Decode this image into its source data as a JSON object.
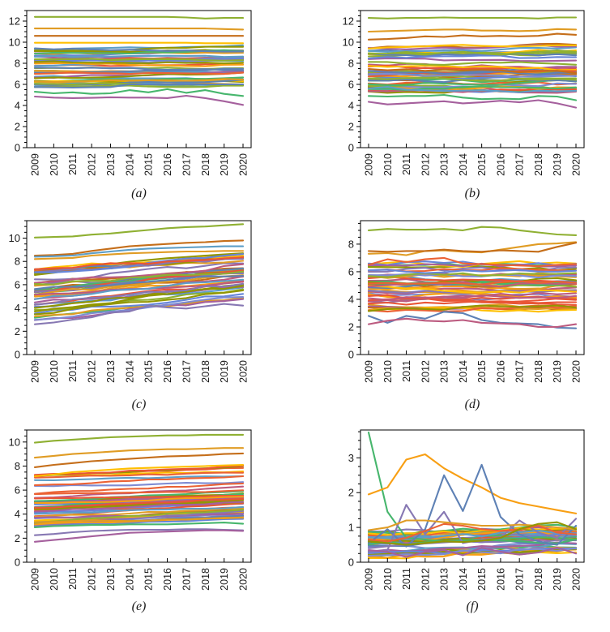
{
  "figure": {
    "background": "#ffffff",
    "frame_color": "#000000",
    "tick_label_color": "#1a1a1a",
    "tick_font_px": 13,
    "x_tick_font_px": 12.5
  },
  "years": [
    "2009",
    "2010",
    "2011",
    "2012",
    "2013",
    "2014",
    "2015",
    "2016",
    "2017",
    "2018",
    "2019",
    "2020"
  ],
  "palette": [
    "#5e81b5",
    "#e09c24",
    "#8fb032",
    "#eb6235",
    "#8778b3",
    "#c56e1a",
    "#5d9ec7",
    "#ffbf00",
    "#a5609d",
    "#929600",
    "#e95536",
    "#6685d9",
    "#f89f13",
    "#bc5b80",
    "#47b66d",
    "#7e8bd2"
  ],
  "chart_data": [
    {
      "id": "a",
      "caption": "(a)",
      "type": "line",
      "ytop": 13,
      "ytick_values": [
        0,
        2,
        4,
        6,
        8,
        10,
        12
      ],
      "ytick_labels": [
        "0",
        "2",
        "4",
        "6",
        "8",
        "10",
        "12"
      ],
      "minor_step": 0.5,
      "series": [
        {
          "color": "#8fb032",
          "values": [
            12.4,
            12.4,
            12.4,
            12.4,
            12.4,
            12.4,
            12.4,
            12.4,
            12.35,
            12.25,
            12.3,
            12.3
          ]
        },
        {
          "color": "#e09c24",
          "values": [
            11.3,
            11.3,
            11.3,
            11.3,
            11.3,
            11.3,
            11.3,
            11.3,
            11.3,
            11.3,
            11.25,
            11.2
          ]
        },
        {
          "color": "#c56e1a",
          "values": [
            10.6,
            10.6,
            10.6,
            10.6,
            10.6,
            10.6,
            10.6,
            10.6,
            10.6,
            10.6,
            10.6,
            10.6
          ]
        },
        {
          "color": "#ffbf00",
          "values": [
            9.95,
            9.95,
            9.95,
            9.95,
            9.95,
            9.95,
            9.95,
            9.95,
            9.95,
            9.9,
            9.9,
            9.9
          ]
        },
        {
          "color": "#5e81b5",
          "values": [
            5.75,
            5.72,
            5.7,
            5.72,
            5.75,
            6.0,
            6.0,
            6.0,
            6.0,
            6.0,
            6.0,
            6.0
          ]
        },
        {
          "color": "#47b66d",
          "values": [
            5.3,
            5.15,
            5.25,
            5.1,
            5.15,
            5.45,
            5.25,
            5.55,
            5.2,
            5.45,
            5.1,
            4.9
          ]
        },
        {
          "color": "#a5609d",
          "values": [
            4.85,
            4.75,
            4.7,
            4.72,
            4.78,
            4.75,
            4.75,
            4.7,
            4.92,
            4.7,
            4.4,
            4.05
          ]
        }
      ],
      "band": {
        "count": 42,
        "start": [
          5.7,
          9.7
        ],
        "end": [
          5.9,
          9.7
        ],
        "wobble": 0.18,
        "seed": 11
      }
    },
    {
      "id": "b",
      "caption": "(b)",
      "type": "line",
      "ytop": 13,
      "ytick_values": [
        0,
        2,
        4,
        6,
        8,
        10,
        12
      ],
      "ytick_labels": [
        "0",
        "2",
        "4",
        "6",
        "8",
        "10",
        "12"
      ],
      "minor_step": 0.5,
      "series": [
        {
          "color": "#8fb032",
          "values": [
            12.3,
            12.25,
            12.3,
            12.3,
            12.35,
            12.3,
            12.3,
            12.3,
            12.3,
            12.25,
            12.35,
            12.35
          ]
        },
        {
          "color": "#e09c24",
          "values": [
            11.0,
            11.05,
            11.1,
            11.15,
            11.2,
            11.2,
            11.1,
            11.1,
            11.05,
            11.1,
            11.25,
            11.2
          ]
        },
        {
          "color": "#c56e1a",
          "values": [
            10.25,
            10.3,
            10.4,
            10.55,
            10.5,
            10.65,
            10.55,
            10.6,
            10.55,
            10.6,
            10.8,
            10.7
          ]
        },
        {
          "color": "#ffbf00",
          "values": [
            9.4,
            9.5,
            9.55,
            9.6,
            9.7,
            9.75,
            9.65,
            9.6,
            9.6,
            9.65,
            9.7,
            9.7
          ]
        },
        {
          "color": "#47b66d",
          "values": [
            4.9,
            4.85,
            4.9,
            4.9,
            5.0,
            4.75,
            4.6,
            4.65,
            4.6,
            4.9,
            4.85,
            4.5
          ]
        },
        {
          "color": "#a5609d",
          "values": [
            4.35,
            4.1,
            4.2,
            4.3,
            4.4,
            4.2,
            4.3,
            4.45,
            4.3,
            4.5,
            4.2,
            3.8
          ]
        }
      ],
      "band": {
        "count": 44,
        "start": [
          5.3,
          9.6
        ],
        "end": [
          5.4,
          9.7
        ],
        "wobble": 0.3,
        "seed": 23
      }
    },
    {
      "id": "c",
      "caption": "(c)",
      "type": "line",
      "ytop": 11.5,
      "ytick_values": [
        0,
        2,
        4,
        6,
        8,
        10
      ],
      "ytick_labels": [
        "0",
        "2",
        "4",
        "6",
        "8",
        "10"
      ],
      "minor_step": 0.5,
      "series": [
        {
          "color": "#8fb032",
          "values": [
            10.05,
            10.1,
            10.15,
            10.3,
            10.4,
            10.55,
            10.7,
            10.85,
            10.95,
            11.0,
            11.1,
            11.2
          ]
        },
        {
          "color": "#c56e1a",
          "values": [
            8.5,
            8.55,
            8.65,
            8.9,
            9.1,
            9.3,
            9.4,
            9.5,
            9.6,
            9.65,
            9.75,
            9.8
          ]
        },
        {
          "color": "#5d9ec7",
          "values": [
            8.4,
            8.45,
            8.5,
            8.7,
            8.85,
            9.0,
            9.1,
            9.15,
            9.2,
            9.25,
            9.3,
            9.3
          ]
        },
        {
          "color": "#e09c24",
          "values": [
            8.2,
            8.25,
            8.3,
            8.5,
            8.6,
            8.7,
            8.75,
            8.8,
            8.85,
            8.85,
            8.9,
            8.9
          ]
        },
        {
          "color": "#8778b3",
          "values": [
            2.6,
            2.75,
            3.0,
            3.2,
            3.6,
            3.7,
            4.2,
            4.05,
            3.95,
            4.15,
            4.35,
            4.2
          ]
        }
      ],
      "band": {
        "count": 46,
        "start": [
          2.9,
          7.4
        ],
        "end": [
          4.8,
          8.7
        ],
        "wobble": 0.3,
        "seed": 37
      }
    },
    {
      "id": "d",
      "caption": "(d)",
      "type": "line",
      "ytop": 9.7,
      "ytick_values": [
        0,
        2,
        4,
        6,
        8
      ],
      "ytick_labels": [
        "0",
        "2",
        "4",
        "6",
        "8"
      ],
      "minor_step": 0.5,
      "series": [
        {
          "color": "#8fb032",
          "values": [
            9.0,
            9.1,
            9.05,
            9.05,
            9.1,
            9.0,
            9.25,
            9.2,
            9.0,
            8.85,
            8.7,
            8.65
          ]
        },
        {
          "color": "#e09c24",
          "values": [
            7.3,
            7.35,
            7.2,
            7.5,
            7.55,
            7.45,
            7.4,
            7.6,
            7.8,
            8.0,
            8.05,
            8.15
          ]
        },
        {
          "color": "#c56e1a",
          "values": [
            7.5,
            7.45,
            7.5,
            7.5,
            7.6,
            7.5,
            7.45,
            7.55,
            7.5,
            7.45,
            7.8,
            8.1
          ]
        },
        {
          "color": "#eb6235",
          "values": [
            6.5,
            6.9,
            6.7,
            6.9,
            7.0,
            6.6,
            6.55,
            6.5,
            6.45,
            6.4,
            6.5,
            6.55
          ]
        },
        {
          "color": "#929600",
          "values": [
            3.15,
            3.3,
            3.35,
            3.3,
            3.25,
            3.45,
            3.55,
            3.5,
            3.45,
            3.5,
            3.55,
            3.4
          ]
        },
        {
          "color": "#5e81b5",
          "values": [
            2.8,
            2.3,
            2.8,
            2.6,
            3.1,
            3.0,
            2.5,
            2.3,
            2.25,
            2.2,
            1.95,
            1.9
          ]
        },
        {
          "color": "#bc5b80",
          "values": [
            2.2,
            2.45,
            2.6,
            2.45,
            2.4,
            2.5,
            2.3,
            2.25,
            2.2,
            2.0,
            2.0,
            2.2
          ]
        }
      ],
      "band": {
        "count": 46,
        "start": [
          3.1,
          6.7
        ],
        "end": [
          3.2,
          6.6
        ],
        "wobble": 0.3,
        "seed": 51
      }
    },
    {
      "id": "e",
      "caption": "(e)",
      "type": "line",
      "ytop": 11.0,
      "ytick_values": [
        0,
        2,
        4,
        6,
        8,
        10
      ],
      "ytick_labels": [
        "0",
        "2",
        "4",
        "6",
        "8",
        "10"
      ],
      "minor_step": 0.5,
      "series": [
        {
          "color": "#8fb032",
          "values": [
            9.95,
            10.1,
            10.2,
            10.3,
            10.4,
            10.45,
            10.5,
            10.55,
            10.55,
            10.6,
            10.6,
            10.6
          ]
        },
        {
          "color": "#e09c24",
          "values": [
            8.7,
            8.85,
            9.0,
            9.1,
            9.2,
            9.3,
            9.35,
            9.4,
            9.4,
            9.45,
            9.5,
            9.5
          ]
        },
        {
          "color": "#c56e1a",
          "values": [
            7.9,
            8.1,
            8.25,
            8.4,
            8.5,
            8.6,
            8.7,
            8.8,
            8.85,
            8.9,
            9.0,
            9.05
          ]
        },
        {
          "color": "#ffbf00",
          "values": [
            7.15,
            7.3,
            7.5,
            7.6,
            7.7,
            7.8,
            7.85,
            7.9,
            7.95,
            8.0,
            8.05,
            8.1
          ]
        },
        {
          "color": "#47b66d",
          "values": [
            2.9,
            3.0,
            3.05,
            3.1,
            3.1,
            3.15,
            3.15,
            3.15,
            3.2,
            3.25,
            3.3,
            3.2
          ]
        },
        {
          "color": "#8778b3",
          "values": [
            2.25,
            2.35,
            2.5,
            2.6,
            2.65,
            2.7,
            2.7,
            2.7,
            2.75,
            2.75,
            2.7,
            2.65
          ]
        },
        {
          "color": "#a5609d",
          "values": [
            1.7,
            1.85,
            2.0,
            2.15,
            2.3,
            2.45,
            2.5,
            2.55,
            2.6,
            2.65,
            2.65,
            2.6
          ]
        }
      ],
      "band": {
        "count": 46,
        "start": [
          2.9,
          7.3
        ],
        "end": [
          3.6,
          8.0
        ],
        "wobble": 0.12,
        "seed": 67
      }
    },
    {
      "id": "f",
      "caption": "(f)",
      "type": "line",
      "ytop": 3.8,
      "ytick_values": [
        0,
        1,
        2,
        3
      ],
      "ytick_labels": [
        "0",
        "1",
        "2",
        "3"
      ],
      "minor_step": 0.25,
      "series": [
        {
          "color": "#47b66d",
          "values": [
            3.73,
            1.45,
            0.7,
            0.65,
            0.6,
            0.62,
            0.65,
            0.7,
            0.68,
            0.72,
            0.7,
            0.65
          ]
        },
        {
          "color": "#f89f13",
          "values": [
            1.95,
            2.15,
            2.95,
            3.1,
            2.7,
            2.4,
            2.15,
            1.85,
            1.7,
            1.6,
            1.5,
            1.4
          ]
        },
        {
          "color": "#5e81b5",
          "values": [
            0.55,
            0.95,
            0.45,
            0.95,
            2.5,
            1.47,
            2.8,
            1.3,
            0.8,
            0.6,
            0.5,
            1.05
          ]
        },
        {
          "color": "#8778b3",
          "values": [
            0.3,
            0.35,
            1.65,
            0.8,
            1.45,
            0.55,
            0.65,
            0.7,
            1.2,
            0.85,
            0.7,
            1.25
          ]
        },
        {
          "color": "#e09c24",
          "values": [
            0.92,
            1.0,
            1.2,
            1.2,
            1.15,
            1.1,
            1.05,
            1.05,
            1.08,
            1.05,
            1.0,
            0.95
          ]
        },
        {
          "color": "#eb6235",
          "values": [
            0.65,
            0.6,
            0.7,
            0.9,
            1.1,
            1.05,
            0.95,
            0.9,
            0.95,
            1.05,
            0.85,
            0.8
          ]
        },
        {
          "color": "#929600",
          "values": [
            0.6,
            0.55,
            0.5,
            0.55,
            0.6,
            0.58,
            0.62,
            0.7,
            0.95,
            1.1,
            1.15,
            0.95
          ]
        },
        {
          "color": "#a5609d",
          "values": [
            0.35,
            0.3,
            0.15,
            0.3,
            0.35,
            0.2,
            0.42,
            0.3,
            0.22,
            0.28,
            0.42,
            0.25
          ]
        }
      ],
      "band": {
        "count": 40,
        "start": [
          0.12,
          0.88
        ],
        "end": [
          0.3,
          1.0
        ],
        "wobble": 0.15,
        "seed": 83
      }
    }
  ]
}
